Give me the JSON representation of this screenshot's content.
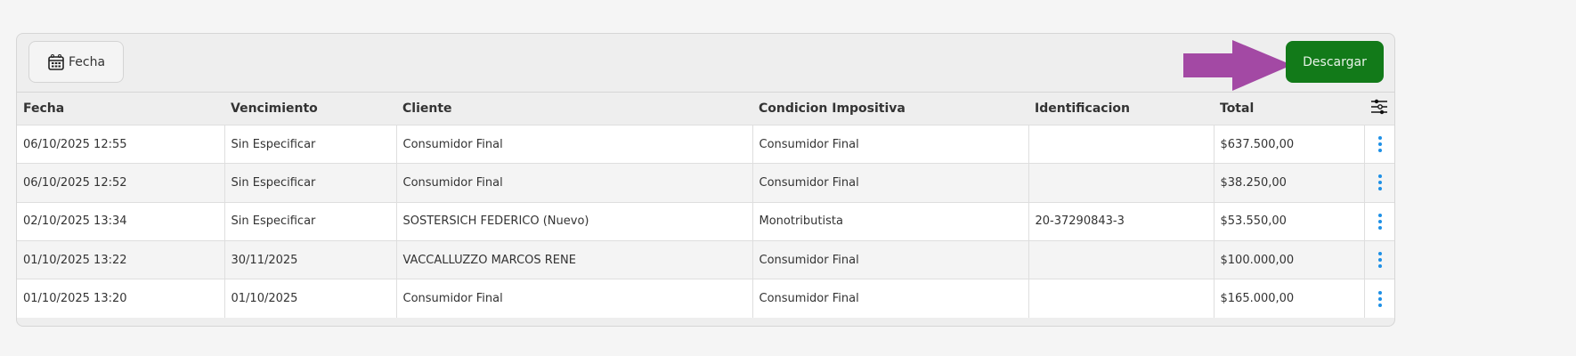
{
  "toolbar": {
    "date_button": "Fecha",
    "download_button": "Descargar",
    "download_color": "#127a19",
    "annotation_arrow_color": "#a349a4"
  },
  "table": {
    "columns": [
      "Fecha",
      "Vencimiento",
      "Cliente",
      "Condicion Impositiva",
      "Identificacion",
      "Total"
    ],
    "rows": [
      [
        "06/10/2025 12:55",
        "Sin Especificar",
        "Consumidor Final",
        "Consumidor Final",
        "",
        "$637.500,00"
      ],
      [
        "06/10/2025 12:52",
        "Sin Especificar",
        "Consumidor Final",
        "Consumidor Final",
        "",
        "$38.250,00"
      ],
      [
        "02/10/2025 13:34",
        "Sin Especificar",
        "SOSTERSICH FEDERICO (Nuevo)",
        "Monotributista",
        "20-37290843-3",
        "$53.550,00"
      ],
      [
        "01/10/2025 13:22",
        "30/11/2025",
        "VACCALLUZZO MARCOS RENE",
        "Consumidor Final",
        "",
        "$100.000,00"
      ],
      [
        "01/10/2025 13:20",
        "01/10/2025",
        "Consumidor Final",
        "Consumidor Final",
        "",
        "$165.000,00"
      ]
    ]
  }
}
